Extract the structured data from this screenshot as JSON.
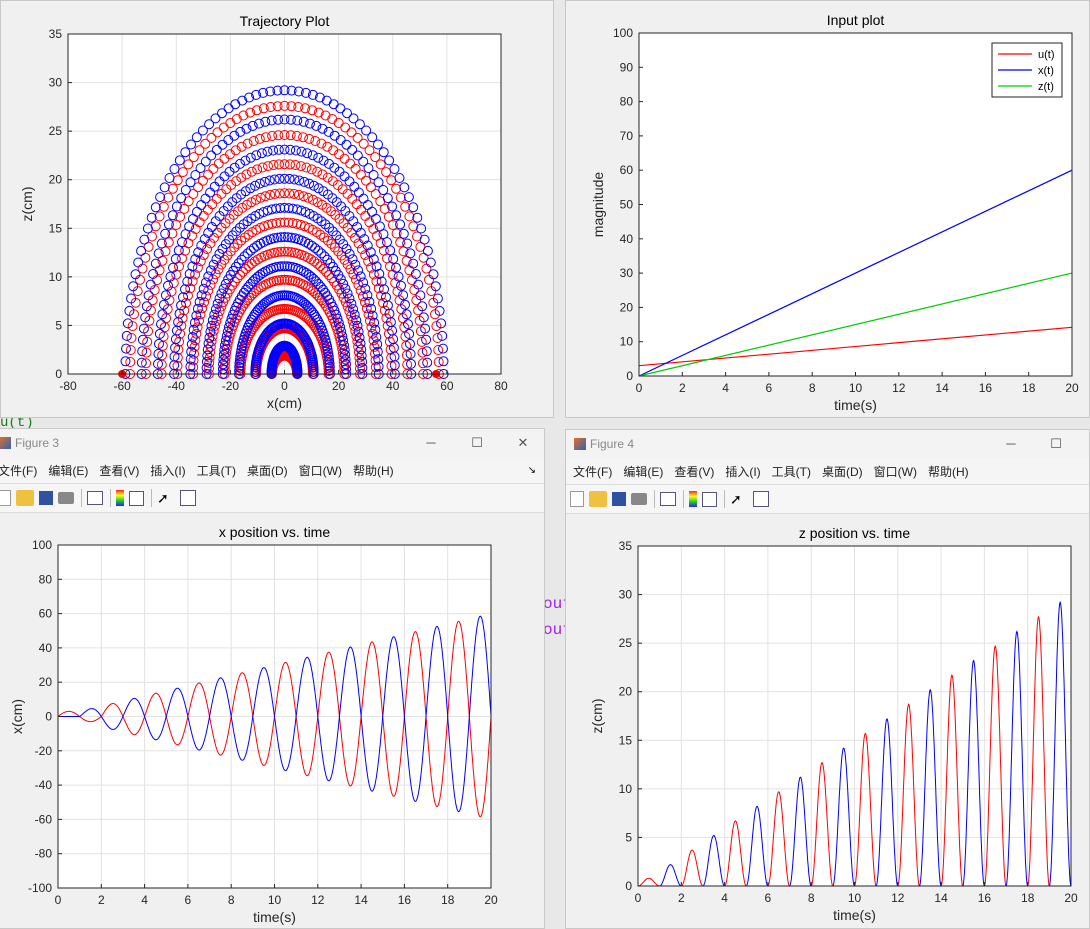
{
  "figures": {
    "fig1": {
      "chart_data": {
        "type": "scatter",
        "title": "Trajectory Plot",
        "xlabel": "x(cm)",
        "ylabel": "z(cm)",
        "xlim": [
          -80,
          80
        ],
        "ylim": [
          0,
          35
        ],
        "xticks": [
          "-80",
          "-60",
          "-40",
          "-20",
          "0",
          "20",
          "40",
          "60",
          "80"
        ],
        "yticks": [
          "0",
          "5",
          "10",
          "15",
          "20",
          "25",
          "30",
          "35"
        ],
        "grid": true,
        "description_series": [
          {
            "color": "#ff0000",
            "marker": "circle",
            "peaks": [
              1.9,
              4.7,
              6.7,
              9.7,
              12.6,
              15.6,
              18.6,
              21.6,
              24.6,
              27.6
            ]
          },
          {
            "color": "#0000ff",
            "marker": "circle",
            "peaks": [
              2.9,
              5.2,
              8.1,
              11.1,
              14.1,
              17.1,
              20.1,
              23.1,
              26.2,
              29.2
            ]
          }
        ],
        "x_extent": [
          -60,
          60
        ]
      }
    },
    "fig2": {
      "chart_data": {
        "type": "line",
        "title": "Input plot",
        "xlabel": "time(s)",
        "ylabel": "magnitude",
        "xlim": [
          0,
          20
        ],
        "ylim": [
          0,
          100
        ],
        "xticks": [
          "0",
          "2",
          "4",
          "6",
          "8",
          "10",
          "12",
          "14",
          "16",
          "18",
          "20"
        ],
        "yticks": [
          "0",
          "10",
          "20",
          "30",
          "40",
          "50",
          "60",
          "70",
          "80",
          "90",
          "100"
        ],
        "grid": false,
        "legend": "top-right",
        "series": [
          {
            "name": "u(t)",
            "color": "#ff0000",
            "x": [
              0,
              20
            ],
            "y": [
              3,
              14.2
            ]
          },
          {
            "name": "x(t)",
            "color": "#0000ff",
            "x": [
              0,
              20
            ],
            "y": [
              0,
              60
            ]
          },
          {
            "name": "z(t)",
            "color": "#00cc00",
            "x": [
              0,
              20
            ],
            "y": [
              0,
              30
            ]
          }
        ]
      }
    },
    "fig3": {
      "window_title": "Figure 3",
      "menu": [
        "文件(F)",
        "编辑(E)",
        "查看(V)",
        "插入(I)",
        "工具(T)",
        "桌面(D)",
        "窗口(W)",
        "帮助(H)"
      ],
      "chart_data": {
        "type": "line",
        "title": "x position vs. time",
        "xlabel": "time(s)",
        "ylabel": "x(cm)",
        "xlim": [
          0,
          20
        ],
        "ylim": [
          -100,
          100
        ],
        "xticks": [
          "0",
          "2",
          "4",
          "6",
          "8",
          "10",
          "12",
          "14",
          "16",
          "18",
          "20"
        ],
        "yticks": [
          "-100",
          "-80",
          "-60",
          "-40",
          "-20",
          "0",
          "20",
          "40",
          "60",
          "80",
          "100"
        ],
        "grid": true,
        "series": [
          {
            "color": "#ff0000",
            "amplitude_at_end": 60,
            "period": 2
          },
          {
            "color": "#0000ff",
            "amplitude_at_end": 60,
            "period": 2
          }
        ]
      }
    },
    "fig4": {
      "window_title": "Figure 4",
      "menu": [
        "文件(F)",
        "编辑(E)",
        "查看(V)",
        "插入(I)",
        "工具(T)",
        "桌面(D)",
        "窗口(W)",
        "帮助(H)"
      ],
      "chart_data": {
        "type": "line",
        "title": "z position vs. time",
        "xlabel": "time(s)",
        "ylabel": "z(cm)",
        "xlim": [
          0,
          20
        ],
        "ylim": [
          0,
          35
        ],
        "xticks": [
          "0",
          "2",
          "4",
          "6",
          "8",
          "10",
          "12",
          "14",
          "16",
          "18",
          "20"
        ],
        "yticks": [
          "0",
          "5",
          "10",
          "15",
          "20",
          "25",
          "30",
          "35"
        ],
        "grid": true,
        "series": [
          {
            "color": "#ff0000",
            "peak_times": [
              0.5,
              2.5,
              4.5,
              6.5,
              8.5,
              10.5,
              12.5,
              14.5,
              16.5,
              18.5
            ],
            "peaks": [
              0.8,
              3.7,
              6.7,
              9.7,
              12.7,
              15.7,
              18.7,
              21.7,
              24.7,
              27.7
            ]
          },
          {
            "color": "#0000ff",
            "peak_times": [
              1.5,
              3.5,
              5.5,
              7.5,
              9.5,
              11.5,
              13.5,
              15.5,
              17.5,
              19.5
            ],
            "peaks": [
              2.2,
              5.2,
              8.2,
              11.2,
              14.2,
              17.2,
              20.2,
              23.2,
              26.2,
              29.2
            ]
          }
        ]
      }
    }
  },
  "background_text": {
    "left_code": "u(t)",
    "mid_code_1": "out",
    "mid_code_2": "out"
  }
}
